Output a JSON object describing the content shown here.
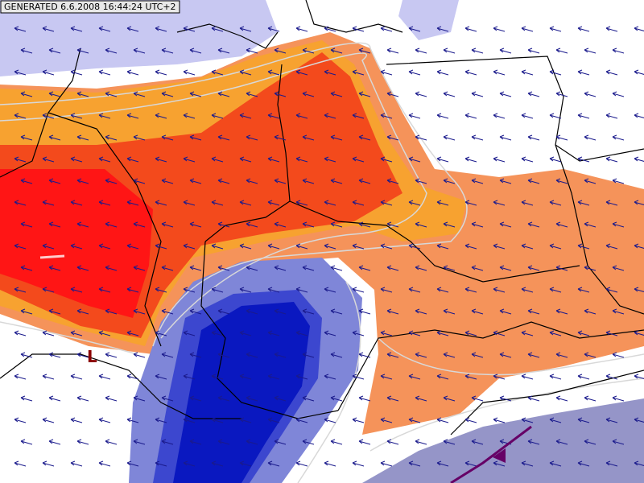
{
  "header": {
    "generated": "GENERATED 6.6.2008 16:44:24 UTC+2"
  },
  "pressure_labels": [
    "L"
  ]
}
